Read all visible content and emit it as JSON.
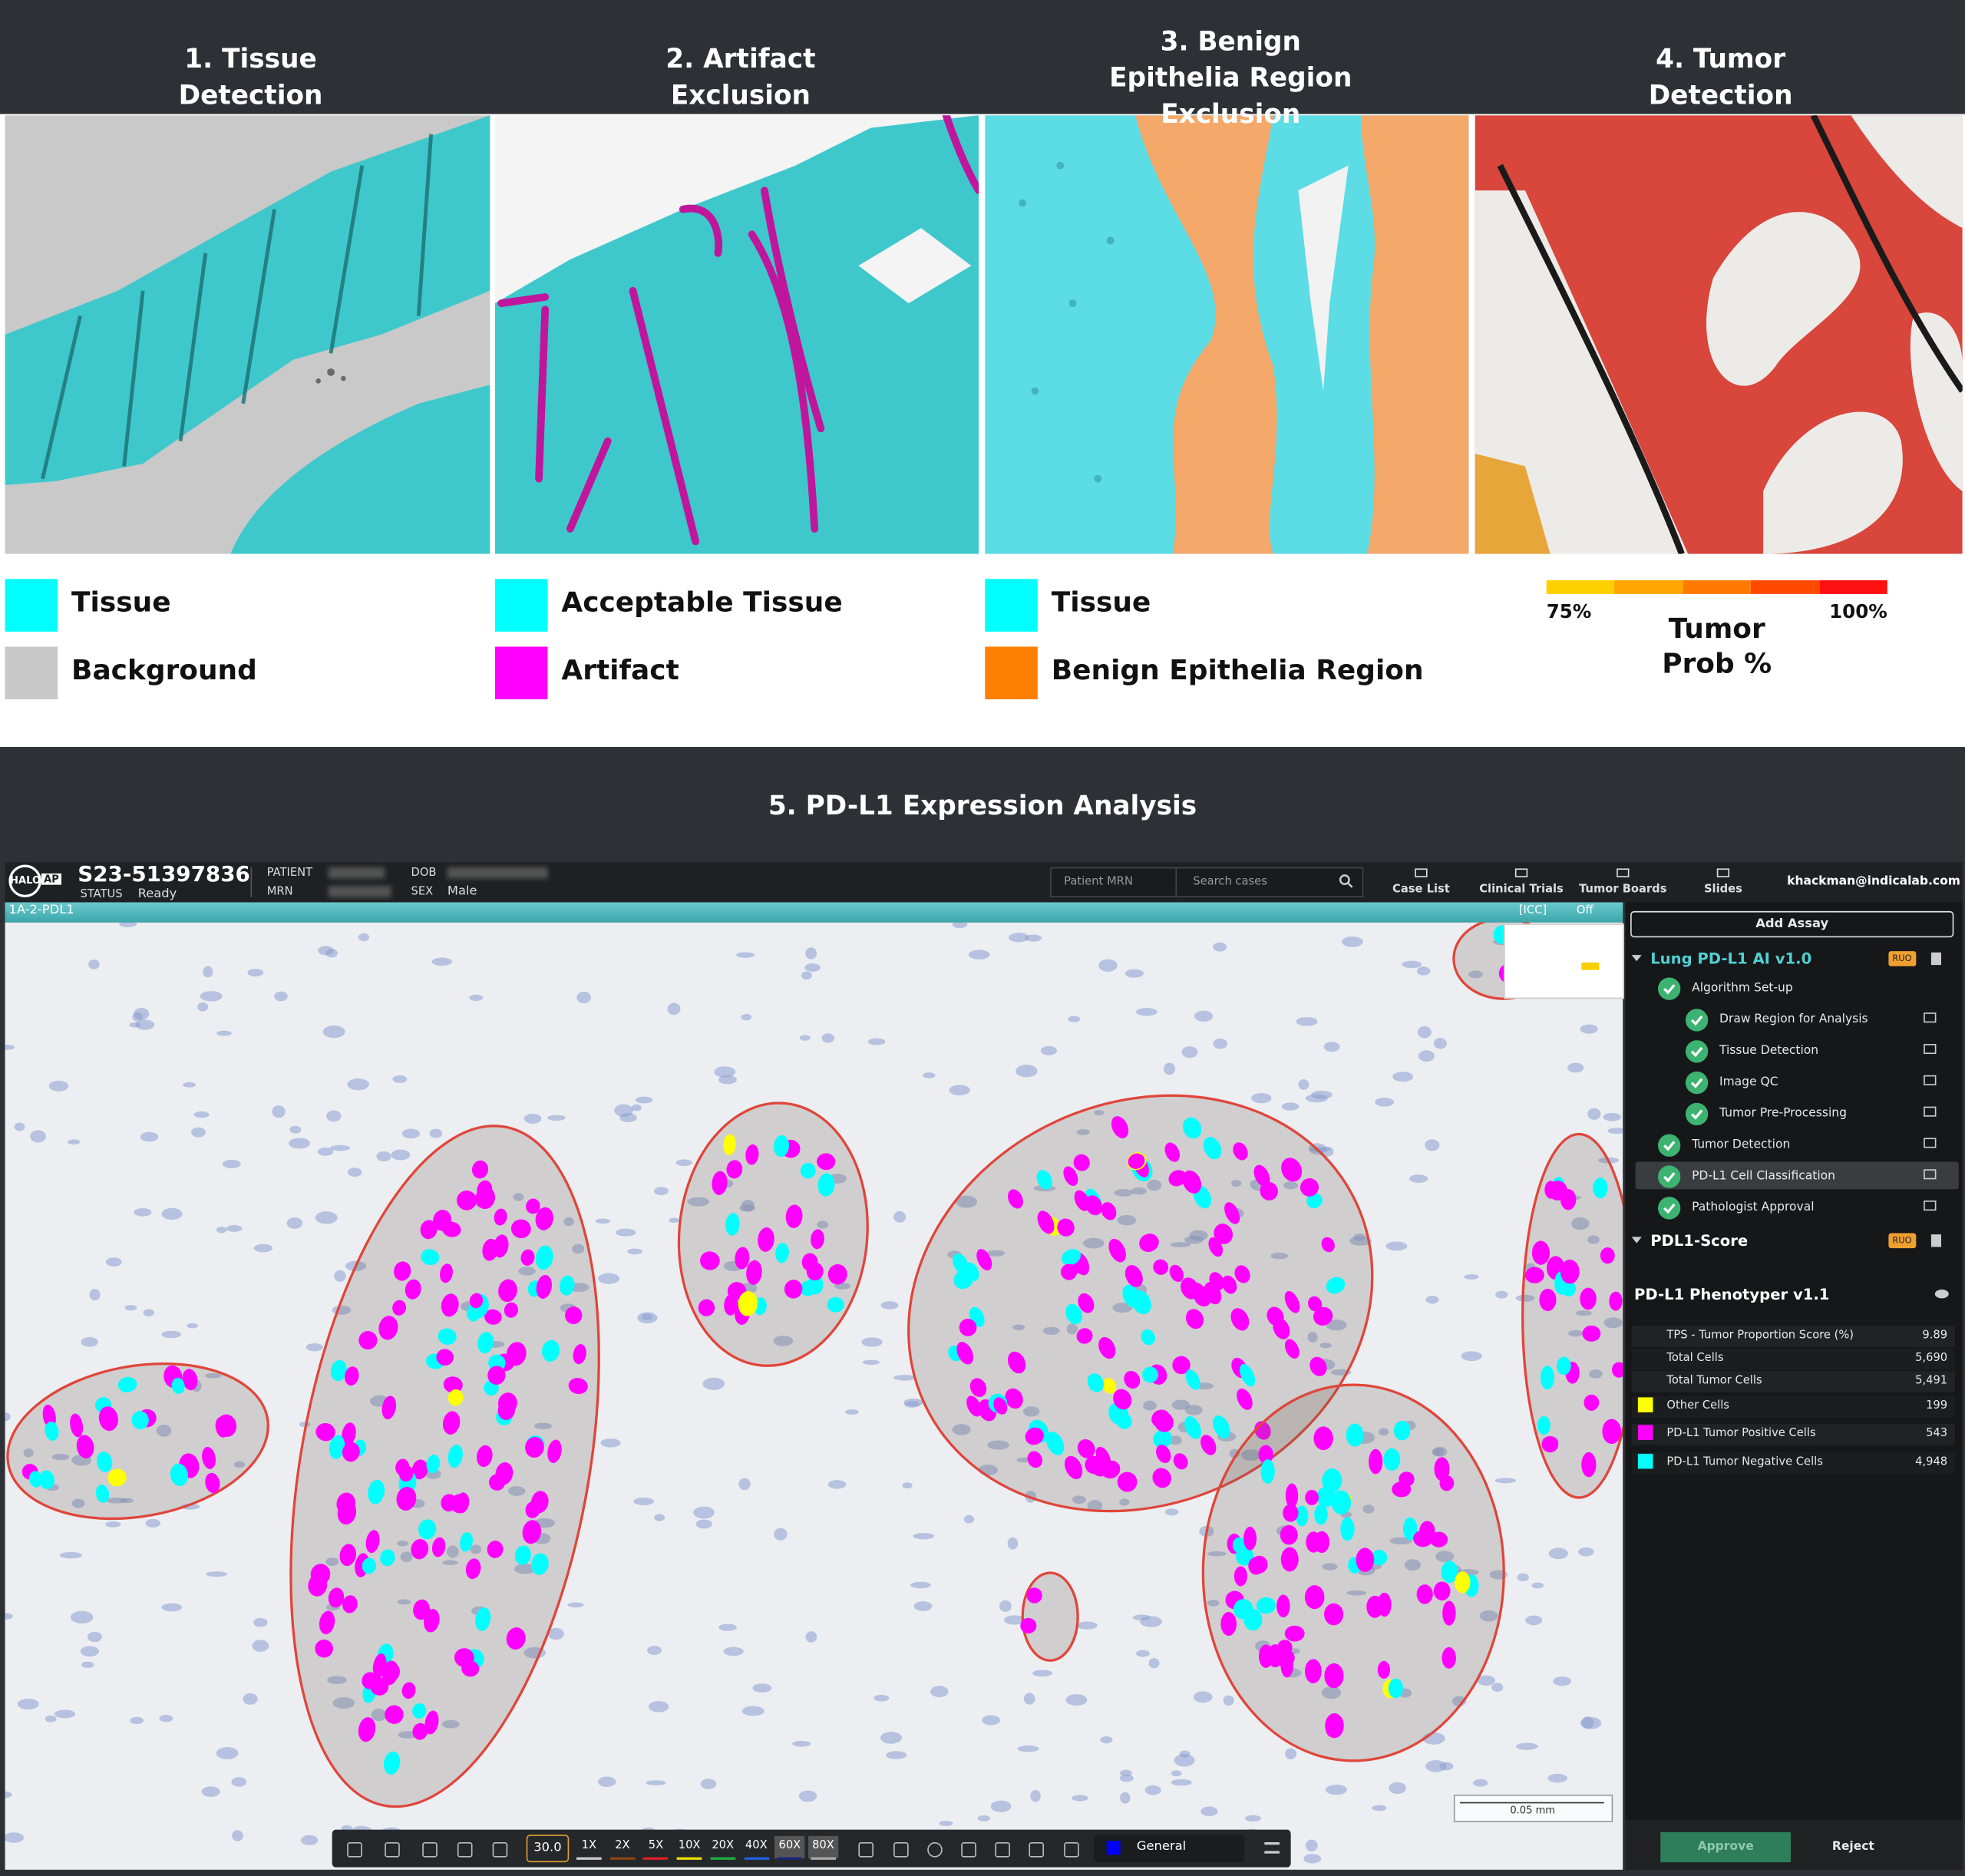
{
  "panels": [
    {
      "title": "1. Tissue Detection",
      "legend": [
        {
          "label": "Tissue",
          "color": "#00ffff"
        },
        {
          "label": "Background",
          "color": "#c8c8c8"
        }
      ]
    },
    {
      "title": "2. Artifact Exclusion",
      "legend": [
        {
          "label": "Acceptable Tissue",
          "color": "#00ffff"
        },
        {
          "label": "Artifact",
          "color": "#ff00ff"
        }
      ]
    },
    {
      "title": "3. Benign Epithelia Region Exclusion",
      "legend": [
        {
          "label": "Tissue",
          "color": "#00ffff"
        },
        {
          "label": "Benign Epithelia Region",
          "color": "#ff8000"
        }
      ]
    },
    {
      "title": "4. Tumor Detection",
      "scale": {
        "colors": [
          "#ffd000",
          "#ffa500",
          "#ff7a00",
          "#ff4a00",
          "#ff1010"
        ],
        "min_label": "75%",
        "max_label": "100%",
        "title": "Tumor Prob %"
      }
    }
  ],
  "section_title": "5. PD-L1 Expression Analysis",
  "app": {
    "logo": [
      "HALO",
      "AP"
    ],
    "case_id": "S23-51397836",
    "status_label": "STATUS",
    "status": "Ready",
    "patient_label": "PATIENT",
    "mrn_label": "MRN",
    "dob_label": "DOB",
    "sex_label": "SEX",
    "sex": "Male",
    "search_field": "Patient MRN",
    "search_placeholder": "Search cases",
    "nav": [
      "Case List",
      "Clinical Trials",
      "Tumor Boards",
      "Slides"
    ],
    "user": "khackman@indicalab.com",
    "slide_name": "1A-2-PDL1",
    "stain": "[ICC]",
    "overlay": "Off",
    "sidebar": {
      "add_assay": "Add Assay",
      "assays": [
        {
          "name": "Lung PD-L1 AI v1.0",
          "badge": "RUO",
          "steps": [
            {
              "label": "Algorithm Set-up",
              "substeps": [
                "Draw Region for Analysis",
                "Tissue Detection",
                "Image QC",
                "Tumor Pre-Processing"
              ]
            },
            {
              "label": "Tumor Detection"
            },
            {
              "label": "PD-L1 Cell Classification",
              "selected": true
            },
            {
              "label": "Pathologist Approval"
            }
          ]
        },
        {
          "name": "PDL1-Score",
          "badge": "RUO"
        }
      ],
      "phenotyper": {
        "title": "PD-L1 Phenotyper v1.1",
        "rows": [
          {
            "label": "TPS - Tumor Proportion Score (%)",
            "value": "9.89"
          },
          {
            "label": "Total Cells",
            "value": "5,690"
          },
          {
            "label": "Total Tumor Cells",
            "value": "5,491"
          },
          {
            "label": "Other Cells",
            "value": "199",
            "color": "#ffff00"
          },
          {
            "label": "PD-L1 Tumor Positive Cells",
            "value": "543",
            "color": "#ff00ff"
          },
          {
            "label": "PD-L1 Tumor Negative Cells",
            "value": "4,948",
            "color": "#00ffff"
          }
        ]
      },
      "approve": "Approve",
      "reject": "Reject"
    },
    "scale_bar": "0.05 mm",
    "toolbar": {
      "magnification": "30.0",
      "zoom": [
        {
          "label": "1X",
          "color": "#cccccc"
        },
        {
          "label": "2X",
          "color": "#8b4513"
        },
        {
          "label": "5X",
          "color": "#e02020"
        },
        {
          "label": "10X",
          "color": "#f0e000"
        },
        {
          "label": "20X",
          "color": "#20b040"
        },
        {
          "label": "40X",
          "color": "#2060e0"
        },
        {
          "label": "60X",
          "color": "#1a237e"
        },
        {
          "label": "80X",
          "color": "#aaaaaa"
        }
      ],
      "annotation_class": "General",
      "annotation_color": "#0000ff"
    }
  }
}
